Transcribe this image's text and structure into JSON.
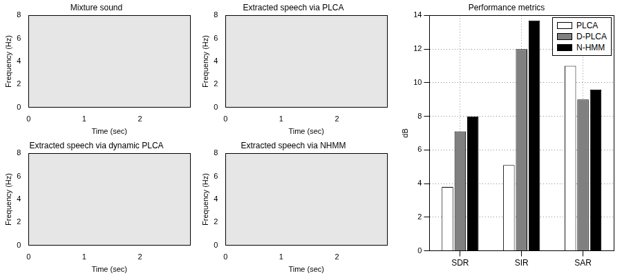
{
  "chart_data": [
    {
      "type": "spectrogram",
      "title": "Mixture sound",
      "x_label": "Time (sec)",
      "y_label": "Frequency (Hz)",
      "xlim": [
        0,
        2.9
      ],
      "ylim": [
        0,
        8
      ],
      "xticks": [
        0,
        1,
        2
      ],
      "yticks": [
        0,
        2,
        4,
        6,
        8
      ],
      "grid": false
    },
    {
      "type": "spectrogram",
      "title": "Extracted speech via PLCA",
      "x_label": "Time (sec)",
      "y_label": "Frequency (Hz)",
      "xlim": [
        0,
        2.9
      ],
      "ylim": [
        0,
        8
      ],
      "xticks": [
        0,
        1,
        2
      ],
      "yticks": [
        0,
        2,
        4,
        6,
        8
      ],
      "grid": false
    },
    {
      "type": "spectrogram",
      "title": "Extracted speech via dynamic PLCA",
      "x_label": "Time (sec)",
      "y_label": "Frequency (Hz)",
      "xlim": [
        0,
        2.9
      ],
      "ylim": [
        0,
        8
      ],
      "xticks": [
        0,
        1,
        2
      ],
      "yticks": [
        0,
        2,
        4,
        6,
        8
      ],
      "grid": false
    },
    {
      "type": "spectrogram",
      "title": "Extracted speech via NHMM",
      "x_label": "Time (sec)",
      "y_label": "Frequency (Hz)",
      "xlim": [
        0,
        2.9
      ],
      "ylim": [
        0,
        8
      ],
      "xticks": [
        0,
        1,
        2
      ],
      "yticks": [
        0,
        2,
        4,
        6,
        8
      ],
      "grid": false
    },
    {
      "type": "bar",
      "title": "Performance metrics",
      "y_label": "dB",
      "categories": [
        "SDR",
        "SIR",
        "SAR"
      ],
      "series": [
        {
          "name": "PLCA",
          "color": "#ffffff",
          "values": [
            3.8,
            5.1,
            11.0
          ]
        },
        {
          "name": "D-PLCA",
          "color": "#808080",
          "values": [
            7.1,
            12.0,
            9.0
          ]
        },
        {
          "name": "N-HMM",
          "color": "#000000",
          "values": [
            8.0,
            13.7,
            9.6
          ]
        }
      ],
      "ylim": [
        0,
        14
      ],
      "yticks": [
        0,
        2,
        4,
        6,
        8,
        10,
        12,
        14
      ],
      "grid": true,
      "legend": "upper right"
    }
  ]
}
